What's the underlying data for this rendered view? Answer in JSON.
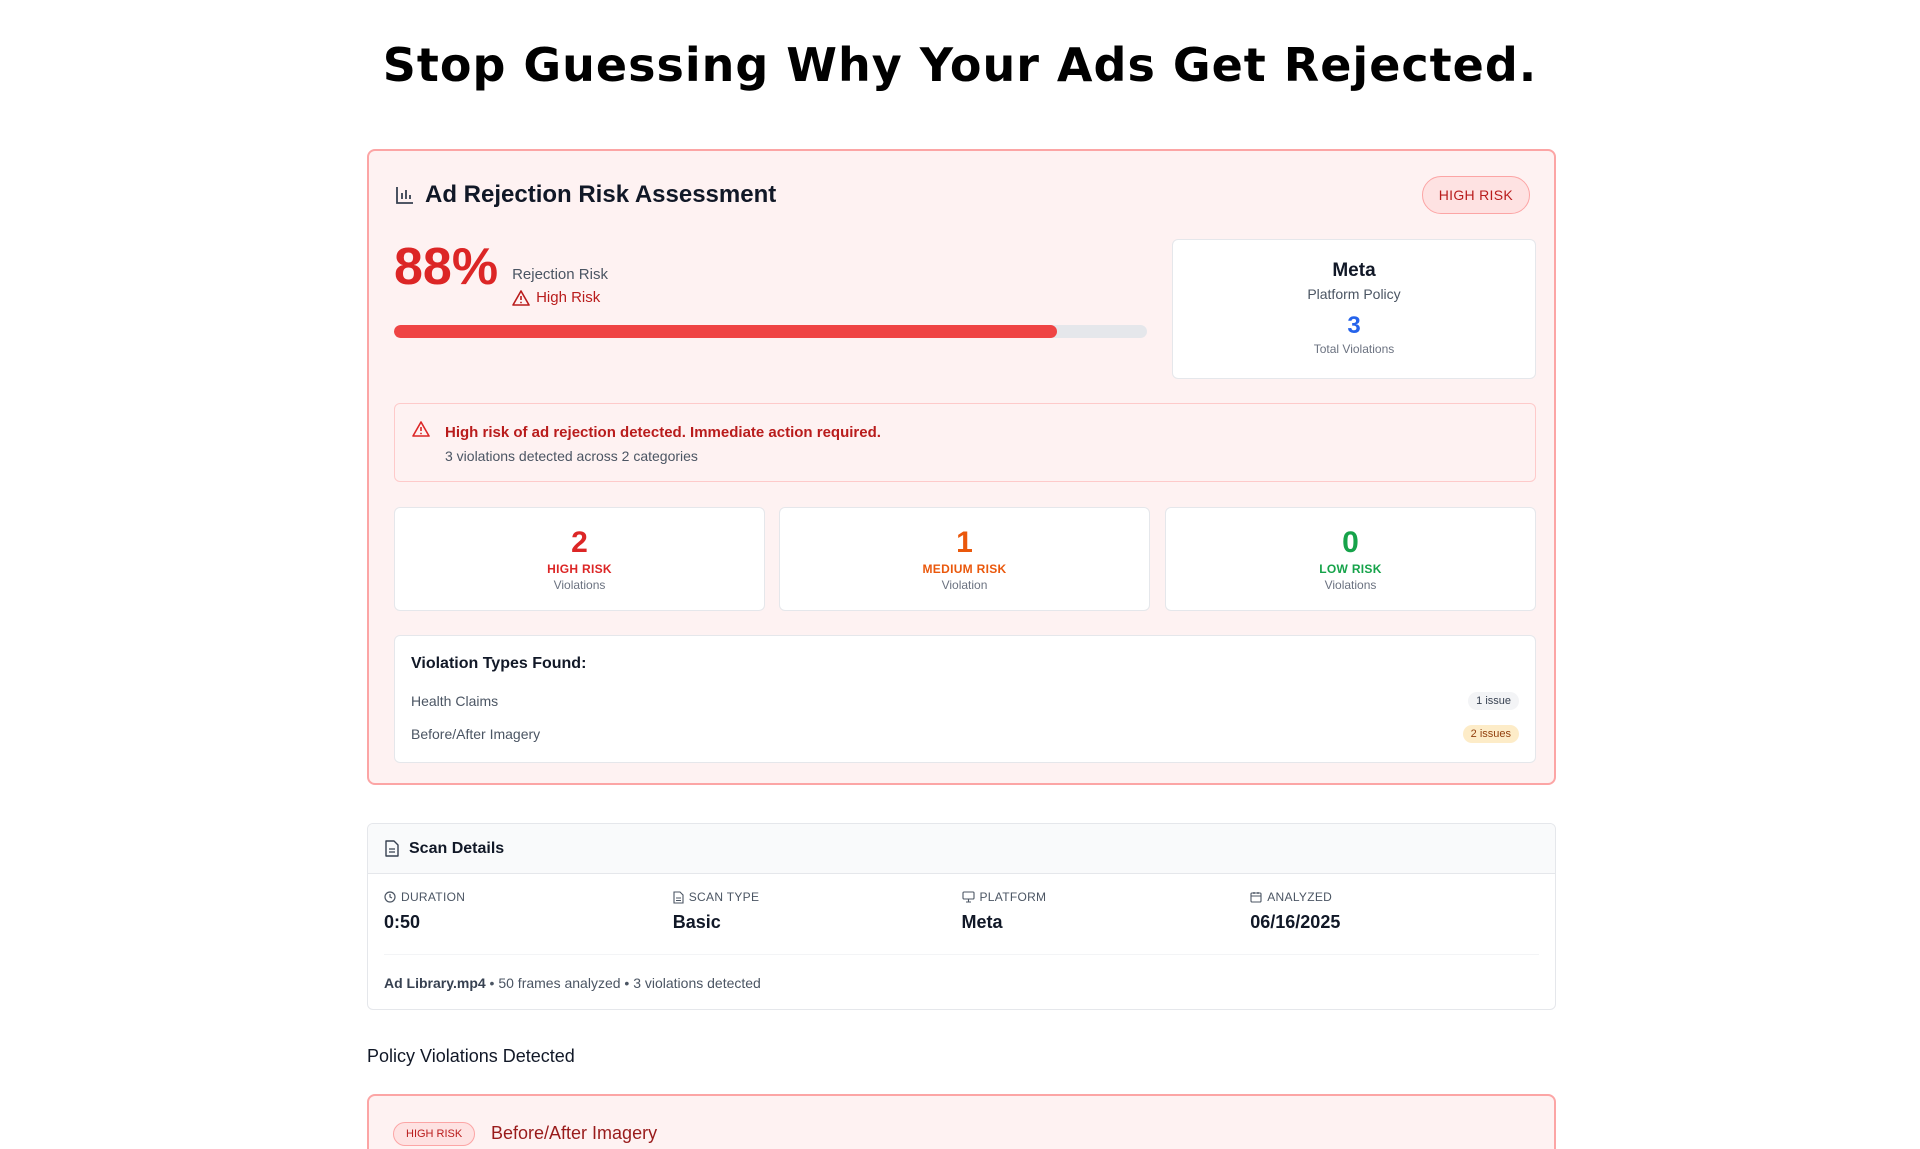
{
  "headline": "Stop Guessing Why Your Ads Get Rejected.",
  "risk": {
    "title": "Ad Rejection Risk Assessment",
    "badge": "HIGH RISK",
    "percent": "88%",
    "percent_value": 0.88,
    "risk_label": "Rejection Risk",
    "risk_level": "High Risk",
    "platform_name": "Meta",
    "platform_sub": "Platform Policy",
    "total_violations": "3",
    "total_violations_label": "Total Violations",
    "alert_title": "High risk of ad rejection detected. Immediate action required.",
    "alert_sub": "3 violations detected across 2 categories",
    "stats": [
      {
        "num": "2",
        "level": "HIGH RISK",
        "sub": "Violations",
        "color": "#dc2626"
      },
      {
        "num": "1",
        "level": "MEDIUM RISK",
        "sub": "Violation",
        "color": "#ea580c"
      },
      {
        "num": "0",
        "level": "LOW RISK",
        "sub": "Violations",
        "color": "#16a34a"
      }
    ],
    "types_heading": "Violation Types Found:",
    "types": [
      {
        "name": "Health Claims",
        "count": "1 issue"
      },
      {
        "name": "Before/After Imagery",
        "count": "2 issues"
      }
    ]
  },
  "scan": {
    "title": "Scan Details",
    "cols": [
      {
        "key": "DURATION",
        "value": "0:50",
        "icon": "clock-icon"
      },
      {
        "key": "SCAN TYPE",
        "value": "Basic",
        "icon": "document-icon"
      },
      {
        "key": "PLATFORM",
        "value": "Meta",
        "icon": "monitor-icon"
      },
      {
        "key": "ANALYZED",
        "value": "06/16/2025",
        "icon": "calendar-icon"
      }
    ],
    "file": "Ad Library.mp4",
    "footer_rest": " • 50 frames analyzed • 3 violations detected"
  },
  "violations": {
    "title": "Policy Violations Detected",
    "first_badge": "HIGH RISK",
    "first_title": "Before/After Imagery"
  }
}
